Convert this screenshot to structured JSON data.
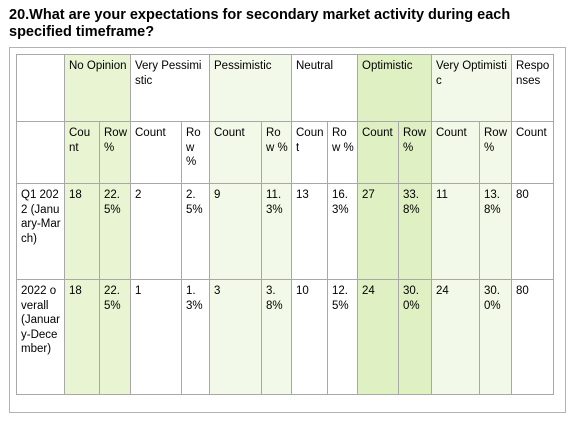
{
  "title": "20.What are your expectations for secondary market activity during each specified timeframe?",
  "columns": [
    {
      "label": "No Opinion",
      "sub": [
        "Count",
        "Row %"
      ]
    },
    {
      "label": "Very Pessimistic",
      "sub": [
        "Count",
        "Row %"
      ]
    },
    {
      "label": "Pessimistic",
      "sub": [
        "Count",
        "Row %"
      ]
    },
    {
      "label": "Neutral",
      "sub": [
        "Count",
        "Row %"
      ]
    },
    {
      "label": "Optimistic",
      "sub": [
        "Count",
        "Row %"
      ]
    },
    {
      "label": "Very Optimistic",
      "sub": [
        "Count",
        "Row %"
      ]
    },
    {
      "label": "Responses",
      "sub": [
        "Count"
      ]
    }
  ],
  "rows": [
    {
      "label": "Q1 2022 (January-March)",
      "cells": [
        "18",
        "22.5%",
        "2",
        "2.5%",
        "9",
        "11.3%",
        "13",
        "16.3%",
        "27",
        "33.8%",
        "11",
        "13.8%",
        "80"
      ]
    },
    {
      "label": "2022 overall (January-December)",
      "cells": [
        "18",
        "22.5%",
        "1",
        "1.3%",
        "3",
        "3.8%",
        "10",
        "12.5%",
        "24",
        "30.0%",
        "24",
        "30.0%",
        "80"
      ]
    }
  ],
  "colors": {
    "no_opinion": "#e8f4d2",
    "optimistic": "#dff0c3",
    "very_optimistic": "#f3f9e8",
    "pessimistic": "#f3f9e8"
  }
}
